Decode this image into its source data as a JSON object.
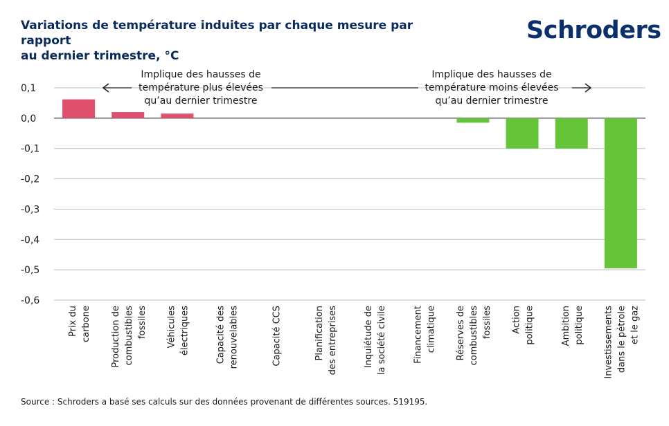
{
  "header": {
    "title_line1": "Variations de température induites par chaque mesure par rapport",
    "title_line2": "au dernier trimestre, °C",
    "logo": "Schroders"
  },
  "footer": {
    "source": "Source : Schroders a basé ses calculs sur des données provenant de différentes sources. 519195."
  },
  "colors": {
    "positive": "#e05170",
    "negative": "#66c43a",
    "grid": "#bfbfbf",
    "axis": "#4d4d4d"
  },
  "chart_data": {
    "type": "bar",
    "title": "Variations de température induites par chaque mesure par rapport au dernier trimestre, °C",
    "categories": [
      [
        "Prix du",
        "carbone"
      ],
      [
        "Production de",
        "combustibles",
        "fossiles"
      ],
      [
        "Véhicules",
        "électriques"
      ],
      [
        "Capacité des",
        "renouvelables"
      ],
      [
        "Capacité CCS"
      ],
      [
        "Planification",
        "des entreprises"
      ],
      [
        "Inquiétude de",
        "la société civile"
      ],
      [
        "Financement",
        "climatique"
      ],
      [
        "Réserves de",
        "combustibles",
        "fossiles"
      ],
      [
        "Action",
        "politique"
      ],
      [
        "Ambition",
        "politique"
      ],
      [
        "Investissements",
        "dans le pétrole",
        "et le gaz"
      ]
    ],
    "values": [
      0.062,
      0.02,
      0.015,
      0,
      0,
      0,
      0,
      0,
      -0.015,
      -0.1,
      -0.1,
      -0.495
    ],
    "ylim": [
      -0.6,
      0.1
    ],
    "yticks": [
      "0,1",
      "0,0",
      "-0,1",
      "-0,2",
      "-0,3",
      "-0,4",
      "-0,5",
      "-0,6"
    ],
    "ytick_values": [
      0.1,
      0.0,
      -0.1,
      -0.2,
      -0.3,
      -0.4,
      -0.5,
      -0.6
    ],
    "grid": true,
    "annotations": {
      "left": [
        "Implique des hausses de",
        "température plus élevées",
        "qu’au dernier trimestre"
      ],
      "right": [
        "Implique des hausses de",
        "température moins élevées",
        "qu’au dernier trimestre"
      ]
    }
  }
}
